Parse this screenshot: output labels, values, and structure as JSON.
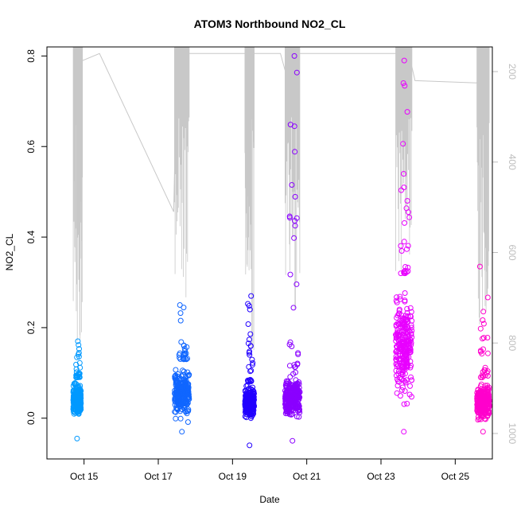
{
  "chart_data": {
    "type": "scatter",
    "title": "ATOM3 Northbound NO2_CL",
    "xlabel": "Date",
    "ylabel": "NO2_CL",
    "ylim": [
      -0.09,
      0.82
    ],
    "xlim": [
      "2023-10-14T00:00",
      "2023-10-26T00:00"
    ],
    "x_ticks": [
      {
        "date": "2023-10-15",
        "label": "Oct 15"
      },
      {
        "date": "2023-10-17",
        "label": "Oct 17"
      },
      {
        "date": "2023-10-19",
        "label": "Oct 19"
      },
      {
        "date": "2023-10-21",
        "label": "Oct 21"
      },
      {
        "date": "2023-10-23",
        "label": "Oct 23"
      },
      {
        "date": "2023-10-25",
        "label": "Oct 25"
      }
    ],
    "y_ticks": [
      0.0,
      0.2,
      0.4,
      0.6,
      0.8
    ],
    "y_tick_labels": [
      "0.0",
      "0.2",
      "0.4",
      "0.6",
      "0.8"
    ],
    "right_axis": {
      "ticks": [
        200,
        400,
        600,
        800,
        1000
      ],
      "tick_labels": [
        "200",
        "400",
        "600",
        "800",
        "1000"
      ],
      "reversed": true,
      "color": "#bdbdbd"
    },
    "grid": false,
    "marker": "open-circle",
    "colors": {
      "scatter_gradient": [
        "#00a6ff",
        "#1a2cff",
        "#8800ff",
        "#e600ff",
        "#ff00cc"
      ],
      "secondary_line": "#c8c8c8"
    },
    "clusters": [
      {
        "start": "2023-10-14T17:00",
        "end": "2023-10-14T22:00",
        "min": -0.045,
        "max": 0.17,
        "typical_low": -0.005,
        "typical_high": 0.09,
        "color": "#0099ff"
      },
      {
        "start": "2023-10-17T10:30",
        "end": "2023-10-17T20:00",
        "min": -0.03,
        "max": 0.25,
        "typical_low": -0.02,
        "typical_high": 0.13,
        "color": "#1066ff"
      },
      {
        "start": "2023-10-19T08:00",
        "end": "2023-10-19T14:00",
        "min": -0.06,
        "max": 0.27,
        "typical_low": -0.01,
        "typical_high": 0.08,
        "color": "#2200ff"
      },
      {
        "start": "2023-10-20T10:00",
        "end": "2023-10-20T19:30",
        "min": -0.05,
        "max": 0.8,
        "typical_low": -0.02,
        "typical_high": 0.11,
        "color": "#8a00ff"
      },
      {
        "start": "2023-10-23T09:30",
        "end": "2023-10-23T20:00",
        "min": -0.03,
        "max": 0.79,
        "typical_low": -0.01,
        "typical_high": 0.32,
        "color": "#e800ff"
      },
      {
        "start": "2023-10-25T14:00",
        "end": "2023-10-25T22:00",
        "min": -0.03,
        "max": 0.34,
        "typical_low": -0.02,
        "typical_high": 0.09,
        "color": "#ff00cc"
      }
    ],
    "notable_points": [
      {
        "x": "2023-10-14T20:00",
        "y": 0.17
      },
      {
        "x": "2023-10-17T14:00",
        "y": 0.25
      },
      {
        "x": "2023-10-19T12:00",
        "y": 0.27
      },
      {
        "x": "2023-10-19T11:00",
        "y": 0.14
      },
      {
        "x": "2023-10-20T16:00",
        "y": 0.8
      },
      {
        "x": "2023-10-20T16:30",
        "y": 0.425
      },
      {
        "x": "2023-10-23T15:00",
        "y": 0.79
      },
      {
        "x": "2023-10-23T14:30",
        "y": 0.74
      },
      {
        "x": "2023-10-23T17:00",
        "y": 0.48
      },
      {
        "x": "2023-10-25T16:00",
        "y": 0.335
      }
    ],
    "secondary_series": {
      "axis": "right",
      "points": [
        {
          "x": "2023-10-14T20:00",
          "y": 180
        },
        {
          "x": "2023-10-15T10:00",
          "y": 160
        },
        {
          "x": "2023-10-17T10:00",
          "y": 510
        },
        {
          "x": "2023-10-17T12:00",
          "y": 170
        },
        {
          "x": "2023-10-17T16:00",
          "y": 160
        },
        {
          "x": "2023-10-19T09:00",
          "y": 160
        },
        {
          "x": "2023-10-19T12:00",
          "y": 160
        },
        {
          "x": "2023-10-20T07:00",
          "y": 160
        },
        {
          "x": "2023-10-20T11:00",
          "y": 210
        },
        {
          "x": "2023-10-20T16:00",
          "y": 160
        },
        {
          "x": "2023-10-23T11:00",
          "y": 160
        },
        {
          "x": "2023-10-23T18:00",
          "y": 160
        },
        {
          "x": "2023-10-23T22:00",
          "y": 220
        },
        {
          "x": "2023-10-25T14:00",
          "y": 225
        },
        {
          "x": "2023-10-25T18:00",
          "y": 160
        }
      ],
      "spike_windows": [
        {
          "start": "2023-10-14T17:00",
          "end": "2023-10-14T23:00",
          "deepest": 800
        },
        {
          "start": "2023-10-17T10:30",
          "end": "2023-10-17T20:00",
          "deepest": 700
        },
        {
          "start": "2023-10-19T08:00",
          "end": "2023-10-19T14:00",
          "deepest": 840
        },
        {
          "start": "2023-10-20T10:00",
          "end": "2023-10-20T19:30",
          "deepest": 740
        },
        {
          "start": "2023-10-23T09:30",
          "end": "2023-10-23T20:00",
          "deepest": 670
        },
        {
          "start": "2023-10-25T14:00",
          "end": "2023-10-25T22:00",
          "deepest": 760
        }
      ]
    }
  }
}
